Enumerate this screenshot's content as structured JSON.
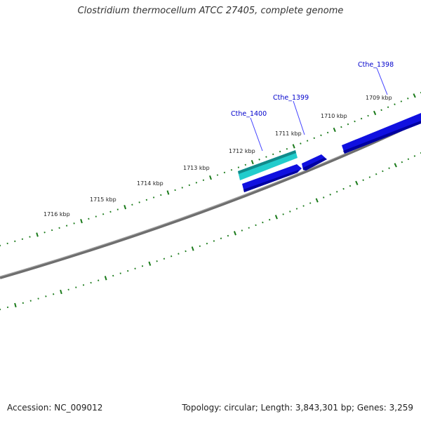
{
  "title": "Clostridium thermocellum ATCC 27405, complete genome",
  "footer": {
    "accession": "Accession: NC_009012",
    "summary": "Topology: circular; Length: 3,843,301 bp; Genes: 3,259"
  },
  "colors": {
    "backbone": "#808080",
    "tick": "#1a7a1a",
    "gene_forward": "#1010e0",
    "gene_highlight": "#22cccc",
    "label": "#0000cc"
  },
  "kbp_labels": [
    {
      "text": "1709 kbp",
      "kbp": 1709
    },
    {
      "text": "1710 kbp",
      "kbp": 1710
    },
    {
      "text": "1711 kbp",
      "kbp": 1711
    },
    {
      "text": "1712 kbp",
      "kbp": 1712
    },
    {
      "text": "1713 kbp",
      "kbp": 1713
    },
    {
      "text": "1714 kbp",
      "kbp": 1714
    },
    {
      "text": "1715 kbp",
      "kbp": 1715
    },
    {
      "text": "1716 kbp",
      "kbp": 1716
    }
  ],
  "genes": [
    {
      "name": "Cthe_1398",
      "type": "forward-strand"
    },
    {
      "name": "Cthe_1399",
      "type": "forward-strand"
    },
    {
      "name": "Cthe_1400",
      "type": "highlighted"
    }
  ]
}
